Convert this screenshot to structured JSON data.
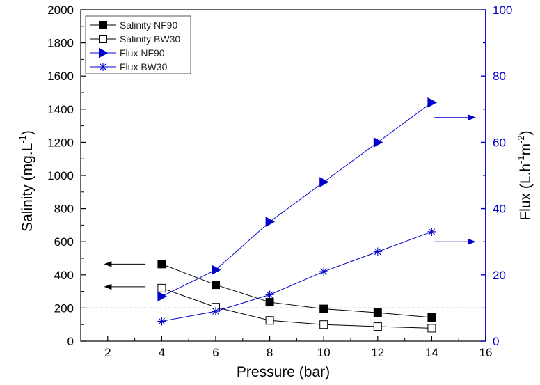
{
  "chart_data": {
    "type": "line",
    "x": [
      4,
      6,
      8,
      10,
      12,
      14
    ],
    "xlabel": "Pressure (bar)",
    "ylabel_left": {
      "main": "Salinity (mg.L",
      "sup": "-1",
      "tail": ")"
    },
    "ylabel_right": {
      "main": "Flux (L.h",
      "sup1": "-1",
      "mid": "m",
      "sup2": "-2",
      "tail": ")"
    },
    "xlim": [
      1,
      16
    ],
    "ylim_left": [
      0,
      2000
    ],
    "ylim_right": [
      0,
      100
    ],
    "x_ticks": [
      2,
      4,
      6,
      8,
      10,
      12,
      14,
      16
    ],
    "y_left_ticks": [
      0,
      200,
      400,
      600,
      800,
      1000,
      1200,
      1400,
      1600,
      1800,
      2000
    ],
    "y_right_ticks": [
      0,
      20,
      40,
      60,
      80,
      100
    ],
    "reference_line_left_y": 200,
    "legend_position": "top-left",
    "colors": {
      "salinity": "#000000",
      "flux": "#0000cc",
      "reference": "#555555"
    },
    "series": [
      {
        "name": "Salinity NF90",
        "axis": "left",
        "marker": "filled-square",
        "color": "#000000",
        "values": [
          465,
          340,
          235,
          195,
          172,
          143
        ]
      },
      {
        "name": "Salinity BW30",
        "axis": "left",
        "marker": "open-square",
        "color": "#000000",
        "values": [
          320,
          205,
          125,
          100,
          88,
          78
        ]
      },
      {
        "name": "Flux NF90",
        "axis": "right",
        "marker": "filled-triangle-right",
        "color": "#0000cc",
        "values": [
          13.5,
          21.5,
          36,
          48,
          60,
          72
        ]
      },
      {
        "name": "Flux BW30",
        "axis": "right",
        "marker": "asterisk",
        "color": "#0000cc",
        "values": [
          6,
          9,
          14,
          21,
          27,
          33
        ]
      }
    ],
    "axis_arrows": [
      {
        "series": "Salinity NF90",
        "direction": "left",
        "y": 465,
        "x_from": 3.4,
        "x_to": 1.9
      },
      {
        "series": "Salinity BW30",
        "direction": "left",
        "y": 328,
        "x_from": 3.4,
        "x_to": 1.9
      },
      {
        "series": "Flux NF90",
        "direction": "right",
        "y": 67.5,
        "x_from": 14.1,
        "x_to": 15.6
      },
      {
        "series": "Flux BW30",
        "direction": "right",
        "y": 30,
        "x_from": 14.1,
        "x_to": 15.6
      }
    ]
  }
}
